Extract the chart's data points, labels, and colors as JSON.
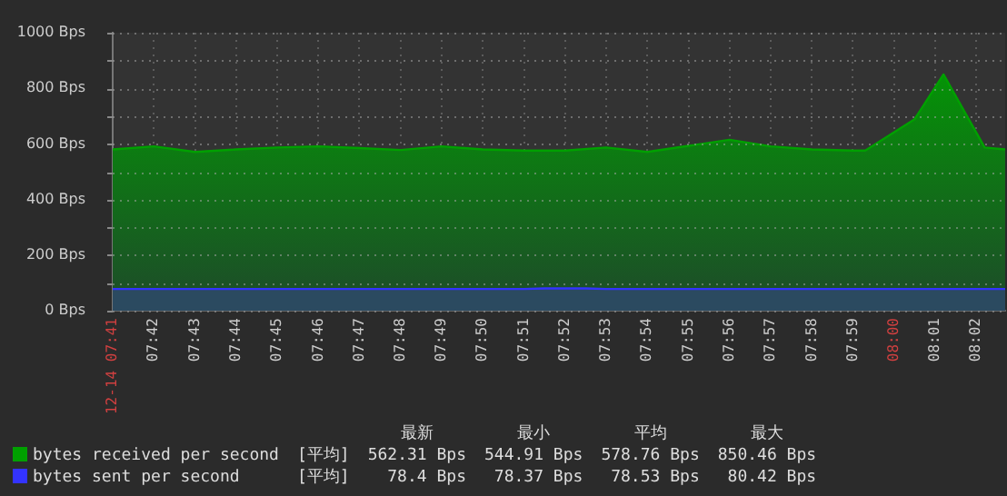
{
  "chart_data": {
    "type": "area",
    "legend": "bottom",
    "grid": true,
    "xlim": [
      7.6833,
      8.045
    ],
    "xticks": [
      {
        "value": 7.6833,
        "label": "12-14 07:41"
      },
      {
        "value": 7.7,
        "label": "07:42"
      },
      {
        "value": 7.7167,
        "label": "07:43"
      },
      {
        "value": 7.7333,
        "label": "07:44"
      },
      {
        "value": 7.75,
        "label": "07:45"
      },
      {
        "value": 7.7667,
        "label": "07:46"
      },
      {
        "value": 7.7833,
        "label": "07:47"
      },
      {
        "value": 7.8,
        "label": "07:48"
      },
      {
        "value": 7.8167,
        "label": "07:49"
      },
      {
        "value": 7.8333,
        "label": "07:50"
      },
      {
        "value": 7.85,
        "label": "07:51"
      },
      {
        "value": 7.8667,
        "label": "07:52"
      },
      {
        "value": 7.8833,
        "label": "07:53"
      },
      {
        "value": 7.9,
        "label": "07:54"
      },
      {
        "value": 7.9167,
        "label": "07:55"
      },
      {
        "value": 7.9333,
        "label": "07:56"
      },
      {
        "value": 7.95,
        "label": "07:57"
      },
      {
        "value": 7.9667,
        "label": "07:58"
      },
      {
        "value": 7.9833,
        "label": "07:59"
      },
      {
        "value": 8.0,
        "label": "08:00"
      },
      {
        "value": 8.0167,
        "label": "08:01"
      },
      {
        "value": 8.0333,
        "label": "08:02"
      }
    ],
    "ylim": [
      0,
      1000
    ],
    "yticks": [
      {
        "value": 0,
        "label": "0 Bps"
      },
      {
        "value": 100,
        "label": null
      },
      {
        "value": 200,
        "label": "200 Bps"
      },
      {
        "value": 300,
        "label": null
      },
      {
        "value": 400,
        "label": "400 Bps"
      },
      {
        "value": 500,
        "label": null
      },
      {
        "value": 600,
        "label": "600 Bps"
      },
      {
        "value": 700,
        "label": null
      },
      {
        "value": 800,
        "label": "800 Bps"
      },
      {
        "value": 900,
        "label": null
      },
      {
        "value": 1000,
        "label": "1000 Bps"
      }
    ],
    "series": [
      {
        "name": "bytes received per second",
        "color": "#00a000",
        "x": [
          7.6833,
          7.7,
          7.7167,
          7.7333,
          7.75,
          7.7667,
          7.7833,
          7.8,
          7.8167,
          7.8333,
          7.85,
          7.8667,
          7.8833,
          7.9,
          7.9167,
          7.9333,
          7.95,
          7.9667,
          7.9833,
          7.9883,
          8.0083,
          8.02,
          8.0367,
          8.045
        ],
        "values": [
          580,
          591,
          571,
          580,
          587,
          591,
          585,
          578,
          591,
          580,
          576,
          576,
          587,
          571,
          593,
          615,
          591,
          580,
          576,
          576,
          689,
          850,
          587,
          580
        ]
      },
      {
        "name": "bytes sent per second",
        "color": "#3333ff",
        "x": [
          7.6833,
          7.85,
          7.8583,
          7.875,
          7.8833,
          8.045
        ],
        "values": [
          78,
          78,
          80,
          80,
          78,
          78
        ]
      }
    ],
    "annotations": [
      "最新",
      "最小",
      "平均",
      "最大",
      "[平均]",
      "562.31 Bps",
      "544.91 Bps",
      "578.76 Bps",
      "850.46 Bps",
      "[平均]",
      "78.4 Bps",
      "78.37 Bps",
      "78.53 Bps",
      "80.42 Bps"
    ]
  }
}
